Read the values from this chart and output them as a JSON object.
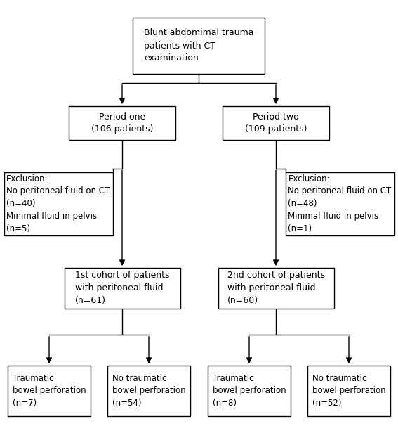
{
  "title": "Blunt abdomimal trauma\npatients with CT\nexamination",
  "period_one": "Period one\n(106 patients)",
  "period_two": "Period two\n(109 patients)",
  "exclusion_one": "Exclusion:\nNo peritoneal fluid on CT\n(n=40)\nMinimal fluid in pelvis\n(n=5)",
  "exclusion_two": "Exclusion:\nNo peritoneal fluid on CT\n(n=48)\nMinimal fluid in pelvis\n(n=1)",
  "cohort_one": "1st cohort of patients\nwith peritoneal fluid\n(n=61)",
  "cohort_two": "2nd cohort of patients\nwith peritoneal fluid\n(n=60)",
  "leaf1": "Traumatic\nbowel perforation\n(n=7)",
  "leaf2": "No traumatic\nbowel perforation\n(n=54)",
  "leaf3": "Traumatic\nbowel perforation\n(n=8)",
  "leaf4": "No traumatic\nbowel perforation\n(n=52)",
  "box_color": "#ffffff",
  "edge_color": "#000000",
  "text_color": "#000000",
  "bg_color": "#ffffff",
  "fontsize": 9,
  "fontsize_small": 8.5
}
